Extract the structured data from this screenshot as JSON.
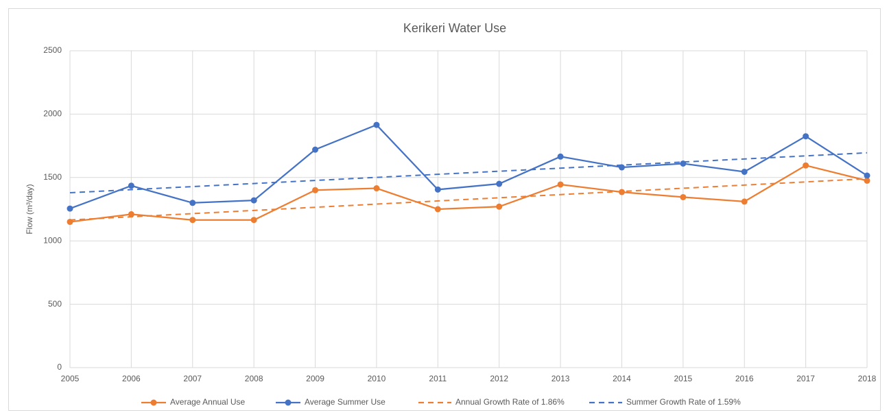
{
  "chart_data": {
    "type": "line",
    "title": "Kerikeri Water Use",
    "y_label": "Flow (m³/day)",
    "x": [
      2005,
      2006,
      2007,
      2008,
      2009,
      2010,
      2011,
      2012,
      2013,
      2014,
      2015,
      2016,
      2017,
      2018
    ],
    "xlim": [
      2005,
      2018
    ],
    "xticks": [
      2005,
      2006,
      2007,
      2008,
      2009,
      2010,
      2011,
      2012,
      2013,
      2014,
      2015,
      2016,
      2017,
      2018
    ],
    "ylim": [
      0,
      2500
    ],
    "yticks": [
      0,
      500,
      1000,
      1500,
      2000,
      2500
    ],
    "grid": true,
    "legend": "bottom",
    "series": [
      {
        "name": "Average Annual Use",
        "color": "#ed7d31",
        "marker": true,
        "dashed": false,
        "values": [
          1150,
          1210,
          1165,
          1165,
          1400,
          1415,
          1250,
          1270,
          1445,
          1385,
          1345,
          1310,
          1595,
          1475
        ]
      },
      {
        "name": "Average Summer Use",
        "color": "#4472c4",
        "marker": true,
        "dashed": false,
        "values": [
          1255,
          1435,
          1300,
          1320,
          1720,
          1915,
          1405,
          1450,
          1665,
          1580,
          1610,
          1545,
          1825,
          1515
        ]
      },
      {
        "name": "Annual Growth Rate of 1.86%",
        "color": "#ed7d31",
        "marker": false,
        "dashed": true,
        "x": [
          2005,
          2018
        ],
        "values": [
          1165,
          1490
        ]
      },
      {
        "name": "Summer Growth Rate of 1.59%",
        "color": "#4472c4",
        "marker": false,
        "dashed": true,
        "x": [
          2005,
          2018
        ],
        "values": [
          1380,
          1695
        ]
      }
    ]
  }
}
